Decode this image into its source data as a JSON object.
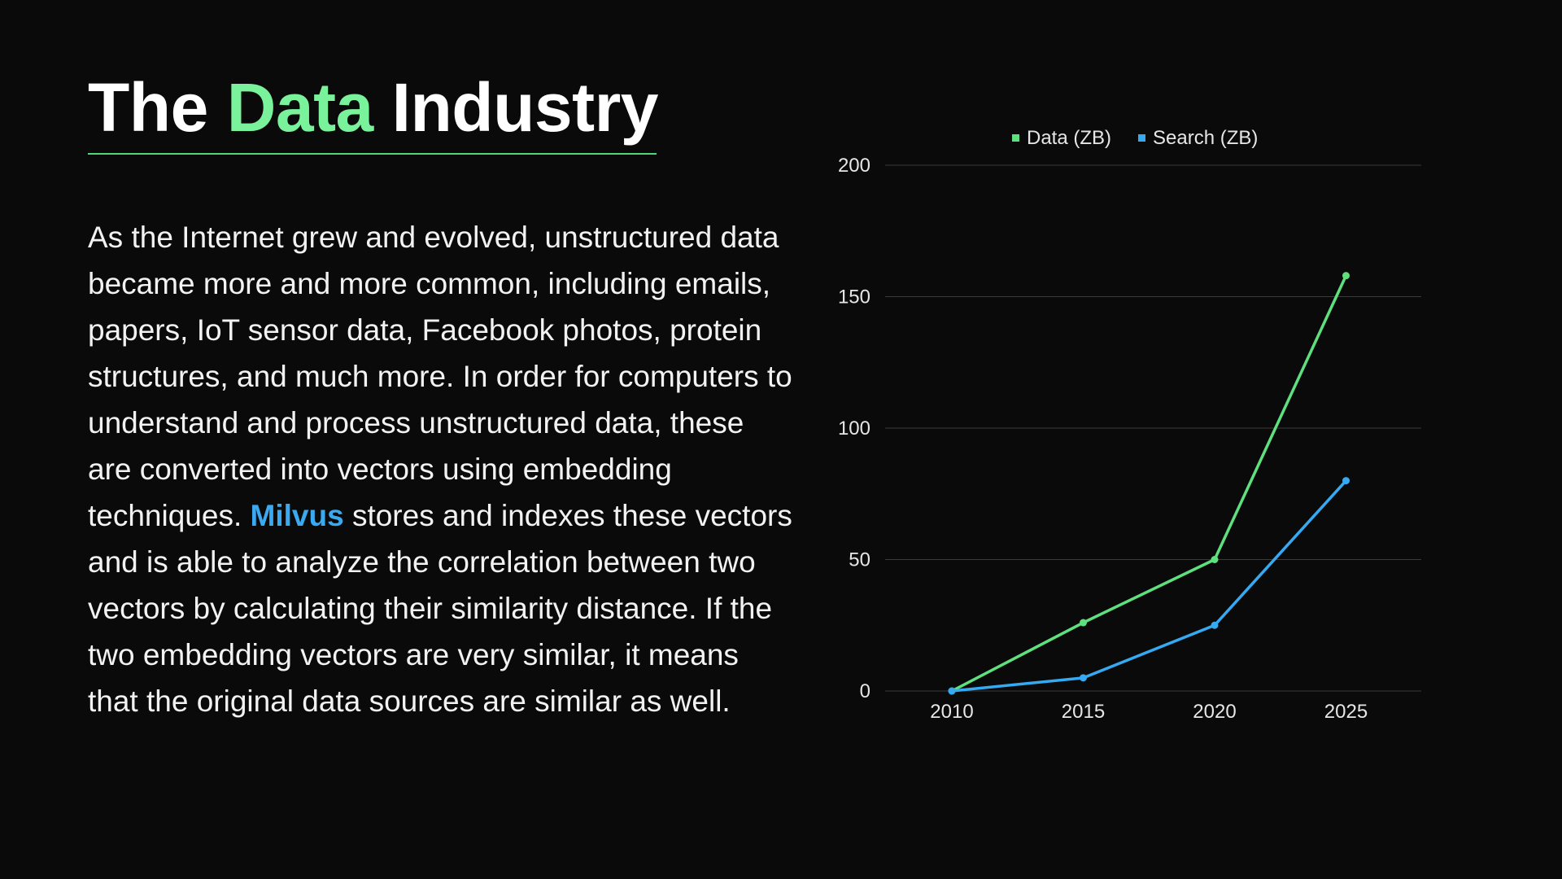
{
  "slide": {
    "title": {
      "part1": "The ",
      "highlight": "Data",
      "part2": " Industry"
    },
    "body": {
      "before": "As the Internet grew and evolved, unstructured data became more and more common, including emails, papers, IoT sensor data, Facebook photos, protein structures, and much more. In order for computers to understand and process unstructured data, these are converted into vectors using embedding techniques. ",
      "highlight": "Milvus",
      "after": " stores and indexes these vectors and is able to analyze the correlation between two vectors by calculating their similarity distance. If the two embedding vectors are very similar, it means that the original data sources are similar as well."
    },
    "colors": {
      "background": "#0a0a0a",
      "title_accent": "#7af19b",
      "link_accent": "#3aa9ef"
    }
  },
  "chart_data": {
    "type": "line",
    "x": [
      "2010",
      "2015",
      "2020",
      "2025"
    ],
    "series": [
      {
        "name": "Data (ZB)",
        "values": [
          0,
          26,
          50,
          158
        ],
        "color": "#5ee07f"
      },
      {
        "name": "Search (ZB)",
        "values": [
          0,
          5,
          25,
          80
        ],
        "color": "#35a9f2"
      }
    ],
    "yticks": [
      0,
      50,
      100,
      150,
      200
    ],
    "ylim": [
      0,
      200
    ],
    "grid": true,
    "legend": "top-center",
    "colors": {
      "grid": "#3a3a3a",
      "tick_label": "#e6e6e6"
    }
  }
}
